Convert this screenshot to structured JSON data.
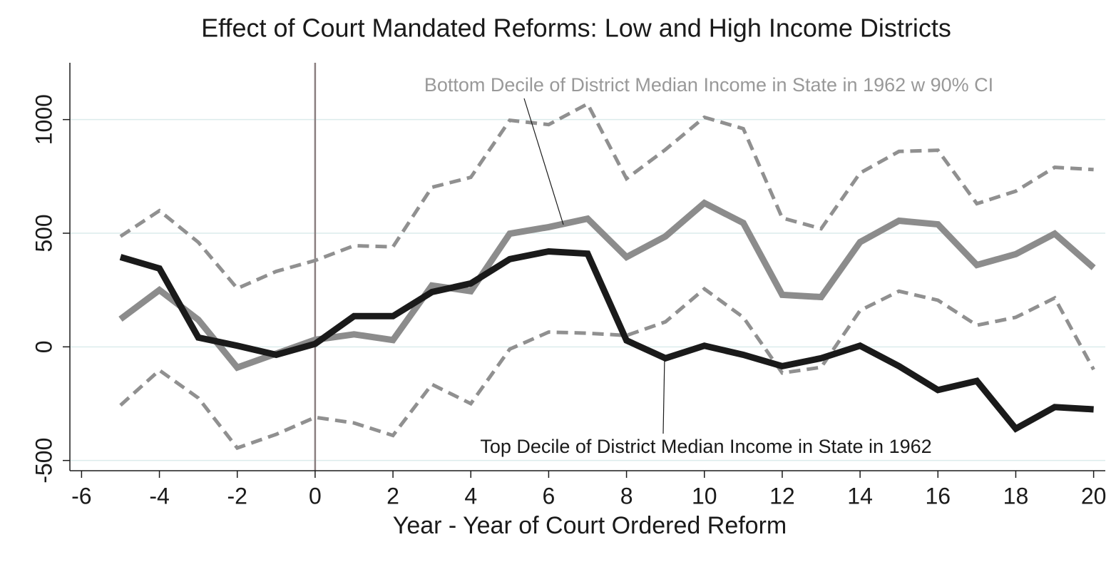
{
  "chart_data": {
    "type": "line",
    "title": "Effect of Court Mandated Reforms: Low and High Income Districts",
    "x_label": "Year - Year of Court Ordered Reform",
    "annotations": [
      "Bottom Decile of District Median Income in State in 1962 w 90% CI",
      "Top Decile of District Median Income in State in 1962"
    ],
    "x": [
      -5,
      -4,
      -3,
      -2,
      -1,
      0,
      1,
      2,
      3,
      4,
      5,
      6,
      7,
      8,
      9,
      10,
      11,
      12,
      13,
      14,
      15,
      16,
      17,
      18,
      19,
      20
    ],
    "series": [
      {
        "color": "#909090",
        "dashed": true,
        "values": [
          486,
          599,
          460,
          257,
          332,
          380,
          445,
          440,
          702,
          746,
          997,
          978,
          1069,
          740,
          868,
          1010,
          960,
          567,
          520,
          765,
          860,
          865,
          630,
          685,
          790,
          780
        ]
      },
      {
        "color": "#909090",
        "dashed": true,
        "values": [
          -257,
          -103,
          -225,
          -445,
          -385,
          -310,
          -335,
          -390,
          -165,
          -250,
          -10,
          65,
          60,
          50,
          110,
          255,
          130,
          -115,
          -90,
          160,
          245,
          205,
          95,
          130,
          215,
          -100
        ]
      },
      {
        "color": "#8c8c8c",
        "dashed": false,
        "values": [
          122,
          250,
          119,
          -91,
          -30,
          31,
          55,
          30,
          270,
          245,
          498,
          527,
          564,
          395,
          486,
          633,
          545,
          229,
          219,
          461,
          555,
          539,
          360,
          408,
          498,
          348
        ]
      },
      {
        "color": "#1a1a1a",
        "dashed": false,
        "values": [
          395,
          345,
          41,
          5,
          -35,
          13,
          135,
          135,
          241,
          279,
          386,
          420,
          410,
          28,
          -50,
          5,
          -35,
          -85,
          -50,
          5,
          -85,
          -190,
          -150,
          -360,
          -265,
          -275
        ]
      }
    ],
    "xlim": [
      -6.3,
      20.3
    ],
    "ylim": [
      -545,
      1250
    ],
    "xticks": [
      -6,
      -4,
      -2,
      0,
      2,
      4,
      6,
      8,
      10,
      12,
      14,
      16,
      18,
      20
    ],
    "yticks": [
      -500,
      0,
      500,
      1000
    ],
    "grid": true,
    "vline": 0
  }
}
